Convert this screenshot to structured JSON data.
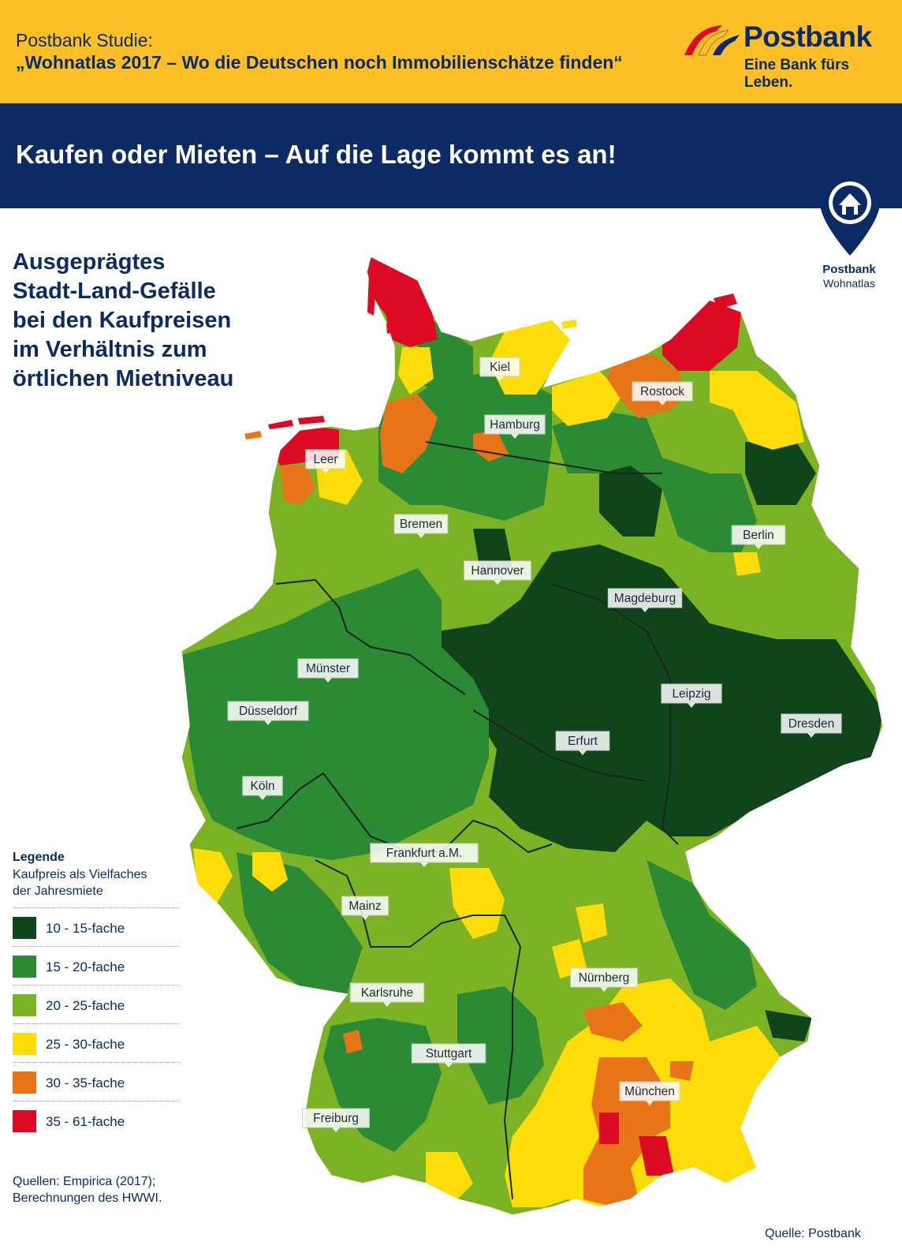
{
  "header": {
    "study_line1": "Postbank Studie:",
    "study_line2": "„Wohnatlas 2017 – Wo die Deutschen noch Immobilienschätze finden“",
    "logo_word": "Postbank",
    "logo_tagline": "Eine Bank fürs Leben.",
    "headline": "Kaufen oder Mieten – Auf die Lage kommt es an!",
    "badge_title": "Postbank",
    "badge_subtitle": "Wohnatlas"
  },
  "subtitle_lines": [
    "Ausgeprägtes",
    "Stadt-Land-Gefälle",
    "bei den Kaufpreisen",
    "im Verhältnis zum",
    "örtlichen Mietniveau"
  ],
  "legend": {
    "title": "Legende",
    "subtitle_line1": "Kaufpreis als Vielfaches",
    "subtitle_line2": "der Jahresmiete",
    "items": [
      {
        "label": "10 - 15-fache",
        "color": "#10451c"
      },
      {
        "label": "15 - 20-fache",
        "color": "#2b8a34"
      },
      {
        "label": "20 - 25-fache",
        "color": "#7bb324"
      },
      {
        "label": "25 - 30-fache",
        "color": "#fcdd0a"
      },
      {
        "label": "30 - 35-fache",
        "color": "#e8741a"
      },
      {
        "label": "35 - 61-fache",
        "color": "#dd0a24"
      }
    ]
  },
  "cities": [
    "Kiel",
    "Rostock",
    "Hamburg",
    "Leer",
    "Bremen",
    "Berlin",
    "Hannover",
    "Magdeburg",
    "Münster",
    "Leipzig",
    "Düsseldorf",
    "Dresden",
    "Erfurt",
    "Köln",
    "Frankfurt a.M.",
    "Mainz",
    "Nürnberg",
    "Karlsruhe",
    "Stuttgart",
    "München",
    "Freiburg"
  ],
  "sources": {
    "left_line1": "Quellen: Empirica (2017);",
    "left_line2": "Berechnungen des HWWI.",
    "right": "Quelle: Postbank"
  },
  "colors": {
    "brand_yellow": "#fcbf25",
    "brand_navy": "#0c2a64"
  }
}
